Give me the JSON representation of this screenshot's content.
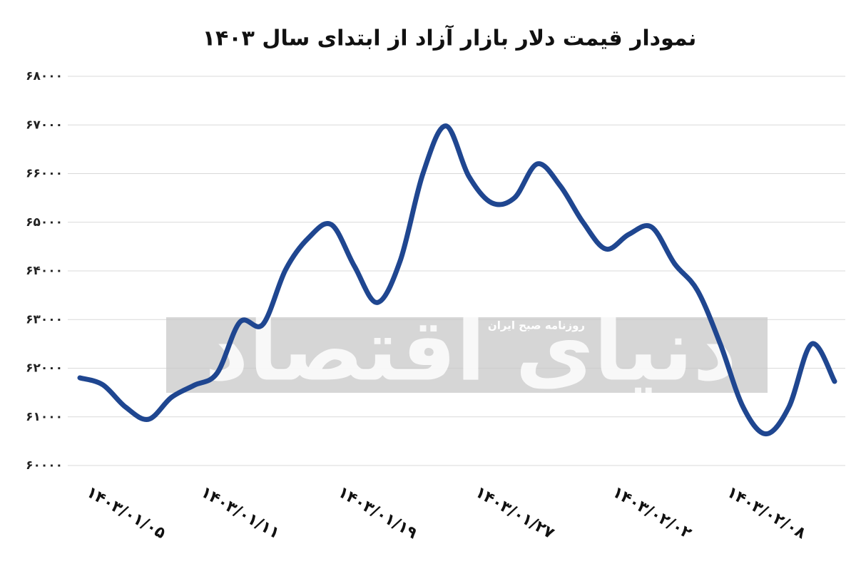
{
  "chart_data": {
    "type": "line",
    "title": "نمودار قیمت دلار بازار آزاد از ابتدای سال ۱۴۰۳",
    "watermark": {
      "brand": "دنیای اقتصاد",
      "tagline": "روزنامه صبح ایران"
    },
    "categories": [
      null,
      null,
      "۱۴۰۳/۰۱/۰۵",
      null,
      null,
      null,
      null,
      "۱۴۰۳/۰۱/۱۱",
      null,
      null,
      null,
      null,
      null,
      "۱۴۰۳/۰۱/۱۹",
      null,
      null,
      null,
      null,
      null,
      "۱۴۰۳/۰۱/۲۷",
      null,
      null,
      null,
      null,
      null,
      "۱۴۰۳/۰۲/۰۲",
      null,
      null,
      null,
      null,
      "۱۴۰۳/۰۲/۰۸",
      null,
      null,
      null
    ],
    "series": [
      {
        "name": null,
        "color": "#1f4690",
        "values": [
          61802,
          61660,
          61200,
          60950,
          61400,
          61650,
          61900,
          62950,
          62900,
          64030,
          64680,
          64950,
          64100,
          63350,
          64200,
          66000,
          66980,
          65950,
          65400,
          65500,
          66200,
          65750,
          65000,
          64450,
          64750,
          64900,
          64150,
          63600,
          62500,
          61200,
          60650,
          61200,
          62500,
          61729
        ]
      }
    ],
    "ylim": [
      60000,
      68000
    ],
    "yticks": [
      {
        "value": 60000,
        "label": "۶۰۰۰۰"
      },
      {
        "value": 61000,
        "label": "۶۱۰۰۰"
      },
      {
        "value": 62000,
        "label": "۶۲۰۰۰"
      },
      {
        "value": 63000,
        "label": "۶۳۰۰۰"
      },
      {
        "value": 64000,
        "label": "۶۴۰۰۰"
      },
      {
        "value": 65000,
        "label": "۶۵۰۰۰"
      },
      {
        "value": 66000,
        "label": "۶۶۰۰۰"
      },
      {
        "value": 67000,
        "label": "۶۷۰۰۰"
      },
      {
        "value": 68000,
        "label": "۶۸۰۰۰"
      }
    ],
    "grid": true
  }
}
